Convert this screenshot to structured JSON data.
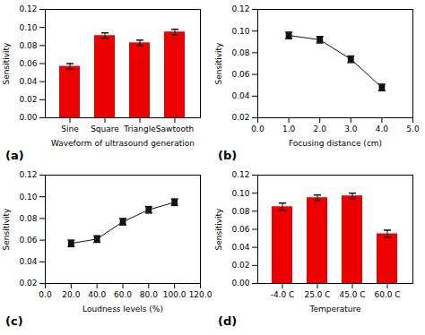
{
  "chart_data": [
    {
      "type": "bar",
      "title": "(a)",
      "categories": [
        "Sine",
        "Square",
        "Triangle",
        "Sawtooth"
      ],
      "values": [
        0.057,
        0.091,
        0.083,
        0.095
      ],
      "errors": [
        0.003,
        0.003,
        0.003,
        0.003
      ],
      "color": "#EE0000",
      "xlabel": "Waveform of ultrasound generation",
      "ylabel": "Sensitivity",
      "ylim": [
        0.0,
        0.12
      ],
      "yticks": [
        {
          "value": 0.0,
          "label": "0.00"
        },
        0.02,
        0.04,
        0.06,
        0.08,
        {
          "value": 0.1,
          "label": "0.10"
        },
        0.12
      ],
      "grid": false
    },
    {
      "type": "line",
      "title": "(b)",
      "x": [
        1.0,
        2.0,
        3.0,
        4.0
      ],
      "values": [
        0.096,
        0.092,
        0.074,
        0.048
      ],
      "errors": [
        0.003,
        0.003,
        0.003,
        0.003
      ],
      "color": "#111111",
      "marker": "square",
      "xlabel": "Focusing distance (cm)",
      "ylabel": "Sensitivity",
      "xlim": [
        0.0,
        5.0
      ],
      "ylim": [
        0.02,
        0.12
      ],
      "xticks": [
        {
          "value": 0.0,
          "label": "0.0"
        },
        {
          "value": 1.0,
          "label": "1.0"
        },
        {
          "value": 2.0,
          "label": "2.0"
        },
        {
          "value": 3.0,
          "label": "3.0"
        },
        {
          "value": 4.0,
          "label": "4.0"
        },
        {
          "value": 5.0,
          "label": "5.0"
        }
      ],
      "yticks": [
        0.02,
        0.04,
        0.06,
        0.08,
        {
          "value": 0.1,
          "label": "0.10"
        },
        0.12
      ],
      "grid": false
    },
    {
      "type": "line",
      "title": "(c)",
      "x": [
        20.0,
        40.0,
        60.0,
        80.0,
        100.0
      ],
      "values": [
        0.057,
        0.061,
        0.077,
        0.088,
        0.095
      ],
      "errors": [
        0.003,
        0.003,
        0.003,
        0.003,
        0.003
      ],
      "color": "#111111",
      "marker": "square",
      "xlabel": "Loudness levels (%)",
      "ylabel": "Sensitivity",
      "xlim": [
        0.0,
        120.0
      ],
      "ylim": [
        0.02,
        0.12
      ],
      "xticks": [
        {
          "value": 0.0,
          "label": "0.0"
        },
        {
          "value": 20.0,
          "label": "20.0"
        },
        {
          "value": 40.0,
          "label": "40.0"
        },
        {
          "value": 60.0,
          "label": "60.0"
        },
        {
          "value": 80.0,
          "label": "80.0"
        },
        {
          "value": 100.0,
          "label": "100.0"
        },
        {
          "value": 120.0,
          "label": "120.0"
        }
      ],
      "yticks": [
        0.02,
        0.04,
        0.06,
        0.08,
        {
          "value": 0.1,
          "label": "0.10"
        },
        0.12
      ],
      "grid": false
    },
    {
      "type": "bar",
      "title": "(d)",
      "categories": [
        "-4.0 C",
        "25.0 C",
        "45.0 C",
        "60.0 C"
      ],
      "values": [
        0.085,
        0.095,
        0.097,
        0.055
      ],
      "errors": [
        0.004,
        0.003,
        0.003,
        0.004
      ],
      "color": "#EE0000",
      "xlabel": "Temperature",
      "ylabel": "Sensitivity",
      "ylim": [
        0.0,
        0.12
      ],
      "yticks": [
        {
          "value": 0.0,
          "label": "0.00"
        },
        0.02,
        0.04,
        0.06,
        0.08,
        {
          "value": 0.1,
          "label": "0.10"
        },
        0.12
      ],
      "grid": false
    }
  ]
}
